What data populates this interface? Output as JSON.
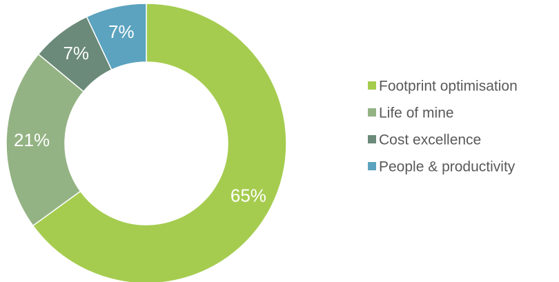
{
  "chart_data": {
    "type": "pie",
    "variant": "donut",
    "categories": [
      "Footprint optimisation",
      "Life of mine",
      "Cost excellence",
      "People & productivity"
    ],
    "values": [
      65,
      21,
      7,
      7
    ],
    "data_labels": [
      "65%",
      "21%",
      "7%",
      "7%"
    ],
    "colors": [
      "#a5cc4f",
      "#94b384",
      "#6b8a79",
      "#5ba3bf"
    ],
    "legend_position": "right"
  }
}
